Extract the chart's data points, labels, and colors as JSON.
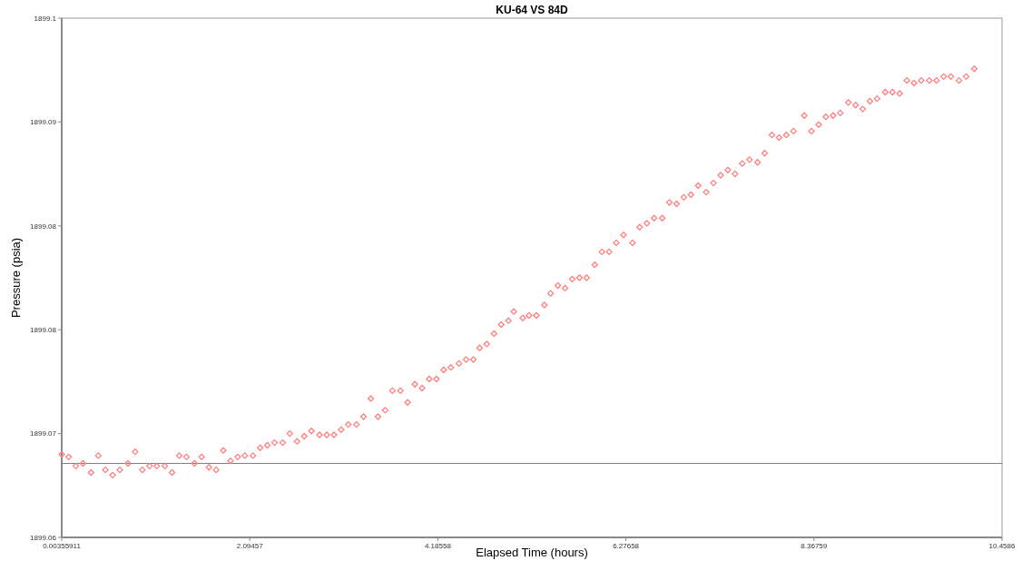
{
  "chart_data": {
    "type": "scatter",
    "title": "KU-64 VS 84D",
    "xlabel": "Elapsed Time (hours)",
    "ylabel": "Pressure (psia)",
    "xlim": [
      0.00355911,
      10.4586
    ],
    "xticks": [
      0.00355911,
      2.09457,
      4.18558,
      6.27658,
      8.36759,
      10.4586
    ],
    "ylim": [
      1899.06,
      1899.1
    ],
    "yticks": [
      {
        "value": 1899.06,
        "label": "1899.06"
      },
      {
        "value": 1899.068,
        "label": "1899.07"
      },
      {
        "value": 1899.076,
        "label": "1899.08"
      },
      {
        "value": 1899.084,
        "label": "1899.08"
      },
      {
        "value": 1899.092,
        "label": "1899.09"
      },
      {
        "value": 1899.1,
        "label": "1899.1"
      }
    ],
    "grid": false,
    "marker": "diamond",
    "ref_lines": [
      {
        "axis": "y",
        "value": 1899.0657,
        "color": "#7f7f7f"
      }
    ],
    "series": [
      {
        "color": "#ff7f7f",
        "x": [
          0.0036,
          0.08,
          0.16,
          0.24,
          0.33,
          0.41,
          0.49,
          0.57,
          0.65,
          0.74,
          0.82,
          0.9,
          0.98,
          1.06,
          1.15,
          1.23,
          1.31,
          1.39,
          1.48,
          1.56,
          1.64,
          1.72,
          1.8,
          1.88,
          1.96,
          2.04,
          2.13,
          2.21,
          2.29,
          2.37,
          2.46,
          2.54,
          2.62,
          2.7,
          2.78,
          2.87,
          2.95,
          3.03,
          3.11,
          3.19,
          3.28,
          3.36,
          3.44,
          3.52,
          3.6,
          3.68,
          3.77,
          3.85,
          3.93,
          4.01,
          4.09,
          4.17,
          4.25,
          4.33,
          4.42,
          4.5,
          4.58,
          4.65,
          4.73,
          4.81,
          4.89,
          4.97,
          5.03,
          5.13,
          5.2,
          5.28,
          5.37,
          5.44,
          5.52,
          5.6,
          5.68,
          5.76,
          5.84,
          5.93,
          6.01,
          6.09,
          6.17,
          6.25,
          6.35,
          6.43,
          6.51,
          6.59,
          6.68,
          6.76,
          6.84,
          6.92,
          7.0,
          7.08,
          7.17,
          7.25,
          7.33,
          7.41,
          7.49,
          7.57,
          7.65,
          7.74,
          7.82,
          7.9,
          7.98,
          8.06,
          8.14,
          8.26,
          8.34,
          8.42,
          8.5,
          8.58,
          8.66,
          8.75,
          8.83,
          8.91,
          8.99,
          9.07,
          9.16,
          9.24,
          9.32,
          9.4,
          9.48,
          9.56,
          9.65,
          9.73,
          9.81,
          9.89,
          9.98,
          10.06,
          10.15
        ],
        "values": [
          1899.0664,
          1899.0662,
          1899.0655,
          1899.0657,
          1899.065,
          1899.0663,
          1899.0652,
          1899.0648,
          1899.0652,
          1899.0657,
          1899.0666,
          1899.0652,
          1899.0655,
          1899.0655,
          1899.0655,
          1899.065,
          1899.0663,
          1899.0662,
          1899.0657,
          1899.0662,
          1899.0654,
          1899.0652,
          1899.0667,
          1899.0659,
          1899.0662,
          1899.0663,
          1899.0663,
          1899.0669,
          1899.0671,
          1899.0673,
          1899.0673,
          1899.068,
          1899.0674,
          1899.0678,
          1899.0682,
          1899.0679,
          1899.0679,
          1899.0679,
          1899.0683,
          1899.0687,
          1899.0687,
          1899.0693,
          1899.0707,
          1899.0693,
          1899.0698,
          1899.0713,
          1899.0713,
          1899.0704,
          1899.0718,
          1899.0715,
          1899.0722,
          1899.0722,
          1899.0729,
          1899.0731,
          1899.0734,
          1899.0737,
          1899.0737,
          1899.0746,
          1899.0749,
          1899.0757,
          1899.0764,
          1899.0767,
          1899.0774,
          1899.0769,
          1899.0771,
          1899.0771,
          1899.0779,
          1899.0788,
          1899.0794,
          1899.0792,
          1899.0799,
          1899.08,
          1899.08,
          1899.081,
          1899.082,
          1899.082,
          1899.0827,
          1899.0833,
          1899.0827,
          1899.0839,
          1899.0842,
          1899.0846,
          1899.0846,
          1899.0858,
          1899.0857,
          1899.0862,
          1899.0864,
          1899.0871,
          1899.0866,
          1899.0873,
          1899.0879,
          1899.0883,
          1899.088,
          1899.0888,
          1899.0891,
          1899.0889,
          1899.0896,
          1899.091,
          1899.0908,
          1899.091,
          1899.0913,
          1899.0925,
          1899.0913,
          1899.0918,
          1899.0924,
          1899.0925,
          1899.0927,
          1899.0935,
          1899.0933,
          1899.093,
          1899.0936,
          1899.0938,
          1899.0943,
          1899.0943,
          1899.0942,
          1899.0952,
          1899.095,
          1899.0952,
          1899.0952,
          1899.0952,
          1899.0955,
          1899.0955,
          1899.0952,
          1899.0955,
          1899.0961
        ]
      }
    ]
  }
}
